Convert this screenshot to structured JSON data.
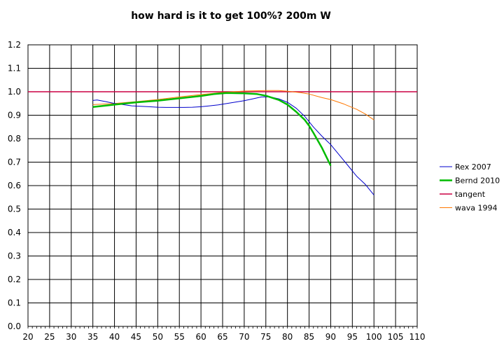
{
  "chart_data": {
    "type": "line",
    "title": "how hard is it to get 100%? 200m W",
    "xlabel": "",
    "ylabel": "",
    "xlim": [
      20,
      110
    ],
    "ylim": [
      0.0,
      1.2
    ],
    "x_ticks": [
      "20",
      "25",
      "30",
      "35",
      "40",
      "45",
      "50",
      "55",
      "60",
      "65",
      "70",
      "75",
      "80",
      "85",
      "90",
      "95",
      "100",
      "105",
      "110"
    ],
    "y_ticks": [
      "0.0",
      "0.1",
      "0.2",
      "0.3",
      "0.4",
      "0.5",
      "0.6",
      "0.7",
      "0.8",
      "0.9",
      "1.0",
      "1.1",
      "1.2"
    ],
    "grid": true,
    "legend_position": "right",
    "series": [
      {
        "name": "Rex 2007",
        "color": "#0000cc",
        "stroke": 1,
        "x": [
          35,
          36,
          38,
          40,
          42,
          44,
          46,
          48,
          50,
          52,
          54,
          56,
          58,
          60,
          62,
          64,
          66,
          68,
          70,
          72,
          74,
          76,
          78,
          80,
          82,
          84,
          86,
          88,
          90,
          92,
          94,
          96,
          98,
          100
        ],
        "y": [
          0.963,
          0.965,
          0.958,
          0.95,
          0.945,
          0.94,
          0.938,
          0.936,
          0.934,
          0.933,
          0.933,
          0.933,
          0.934,
          0.936,
          0.94,
          0.944,
          0.95,
          0.956,
          0.962,
          0.97,
          0.978,
          0.978,
          0.97,
          0.955,
          0.93,
          0.895,
          0.85,
          0.81,
          0.775,
          0.73,
          0.685,
          0.64,
          0.605,
          0.56
        ]
      },
      {
        "name": "Bernd 2010",
        "color": "#00bb00",
        "stroke": 2.5,
        "x": [
          35,
          40,
          45,
          50,
          55,
          60,
          63,
          66,
          70,
          73,
          75,
          78,
          80,
          82,
          84,
          85,
          86,
          88,
          90
        ],
        "y": [
          0.935,
          0.945,
          0.955,
          0.962,
          0.972,
          0.982,
          0.99,
          0.995,
          0.993,
          0.99,
          0.983,
          0.965,
          0.945,
          0.915,
          0.88,
          0.855,
          0.825,
          0.76,
          0.685
        ]
      },
      {
        "name": "tangent",
        "color": "#cc0044",
        "stroke": 1.5,
        "x": [
          20,
          110
        ],
        "y": [
          1.0,
          1.0
        ]
      },
      {
        "name": "wava 1994",
        "color": "#ff7700",
        "stroke": 1,
        "x": [
          35,
          40,
          45,
          50,
          55,
          60,
          65,
          70,
          75,
          78,
          80,
          83,
          85,
          88,
          90,
          93,
          96,
          98,
          100
        ],
        "y": [
          0.945,
          0.95,
          0.958,
          0.967,
          0.978,
          0.988,
          0.997,
          1.003,
          1.005,
          1.005,
          1.002,
          0.996,
          0.99,
          0.975,
          0.967,
          0.948,
          0.925,
          0.905,
          0.88
        ]
      }
    ]
  }
}
